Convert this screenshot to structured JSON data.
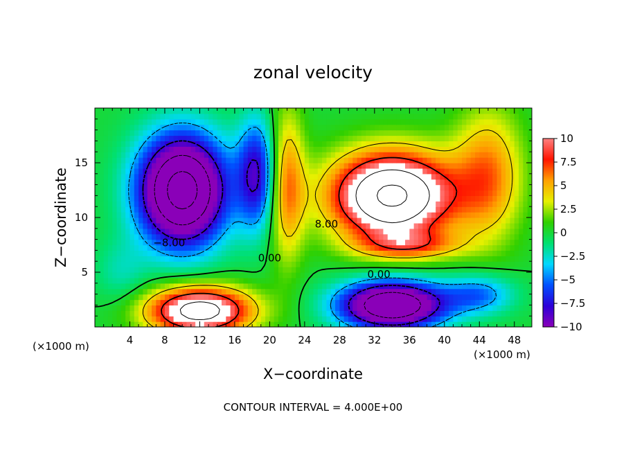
{
  "chart_data": {
    "type": "heatmap",
    "title": "zonal velocity",
    "xlabel": "X−coordinate",
    "ylabel": "Z−coordinate",
    "x_unit_left": "(×1000 m)",
    "x_unit_right": "(×1000 m)",
    "footer": "CONTOUR INTERVAL = 4.000E+00",
    "xlim": [
      0,
      50
    ],
    "ylim": [
      0,
      20
    ],
    "x_ticks": [
      4,
      8,
      12,
      16,
      20,
      24,
      28,
      32,
      36,
      40,
      44,
      48
    ],
    "y_ticks": [
      5,
      10,
      15
    ],
    "colorbar": {
      "range": [
        -10,
        10
      ],
      "tick_values": [
        10,
        7.5,
        5,
        2.5,
        0,
        -2.5,
        -5,
        -7.5,
        -10
      ],
      "tick_labels": [
        "10",
        "7.5",
        "5",
        "2.5",
        "0",
        "−2.5",
        "−5",
        "−7.5",
        "−10"
      ],
      "stops": [
        "#8a00b8",
        "#2c00d8",
        "#0050ff",
        "#00d8ff",
        "#00e070",
        "#30d000",
        "#e6f000",
        "#ffa000",
        "#ff1400",
        "#ff8080"
      ]
    },
    "contour_labels": [
      {
        "text": "8.00",
        "x": 26.5,
        "y": 9.4
      },
      {
        "text": "−8.00",
        "x": 8.5,
        "y": 7.7
      },
      {
        "text": "0.00",
        "x": 32.5,
        "y": 4.8
      },
      {
        "text": "0.00",
        "x": 20.0,
        "y": 6.3
      }
    ],
    "field_centers": [
      {
        "x": 34,
        "y": 12,
        "v": 17,
        "sx": 7,
        "sy": 4
      },
      {
        "x": 45,
        "y": 14,
        "v": 6,
        "sx": 4,
        "sy": 6
      },
      {
        "x": 36,
        "y": 7.5,
        "v": 5,
        "sx": 6,
        "sy": 1.3
      },
      {
        "x": 12,
        "y": 1.5,
        "v": 14,
        "sx": 6,
        "sy": 2.2
      },
      {
        "x": 22,
        "y": 13,
        "v": 6,
        "sx": 2,
        "sy": 7
      },
      {
        "x": 10,
        "y": 12.5,
        "v": -18,
        "sx": 5,
        "sy": 5
      },
      {
        "x": 18.5,
        "y": 14,
        "v": -8,
        "sx": 2.2,
        "sy": 5
      },
      {
        "x": 34,
        "y": 2,
        "v": -16,
        "sx": 6,
        "sy": 2.2
      },
      {
        "x": 44,
        "y": 3,
        "v": -5,
        "sx": 4,
        "sy": 1.8
      },
      {
        "x": 3,
        "y": 5,
        "v": -2,
        "sx": 3,
        "sy": 3
      }
    ]
  }
}
